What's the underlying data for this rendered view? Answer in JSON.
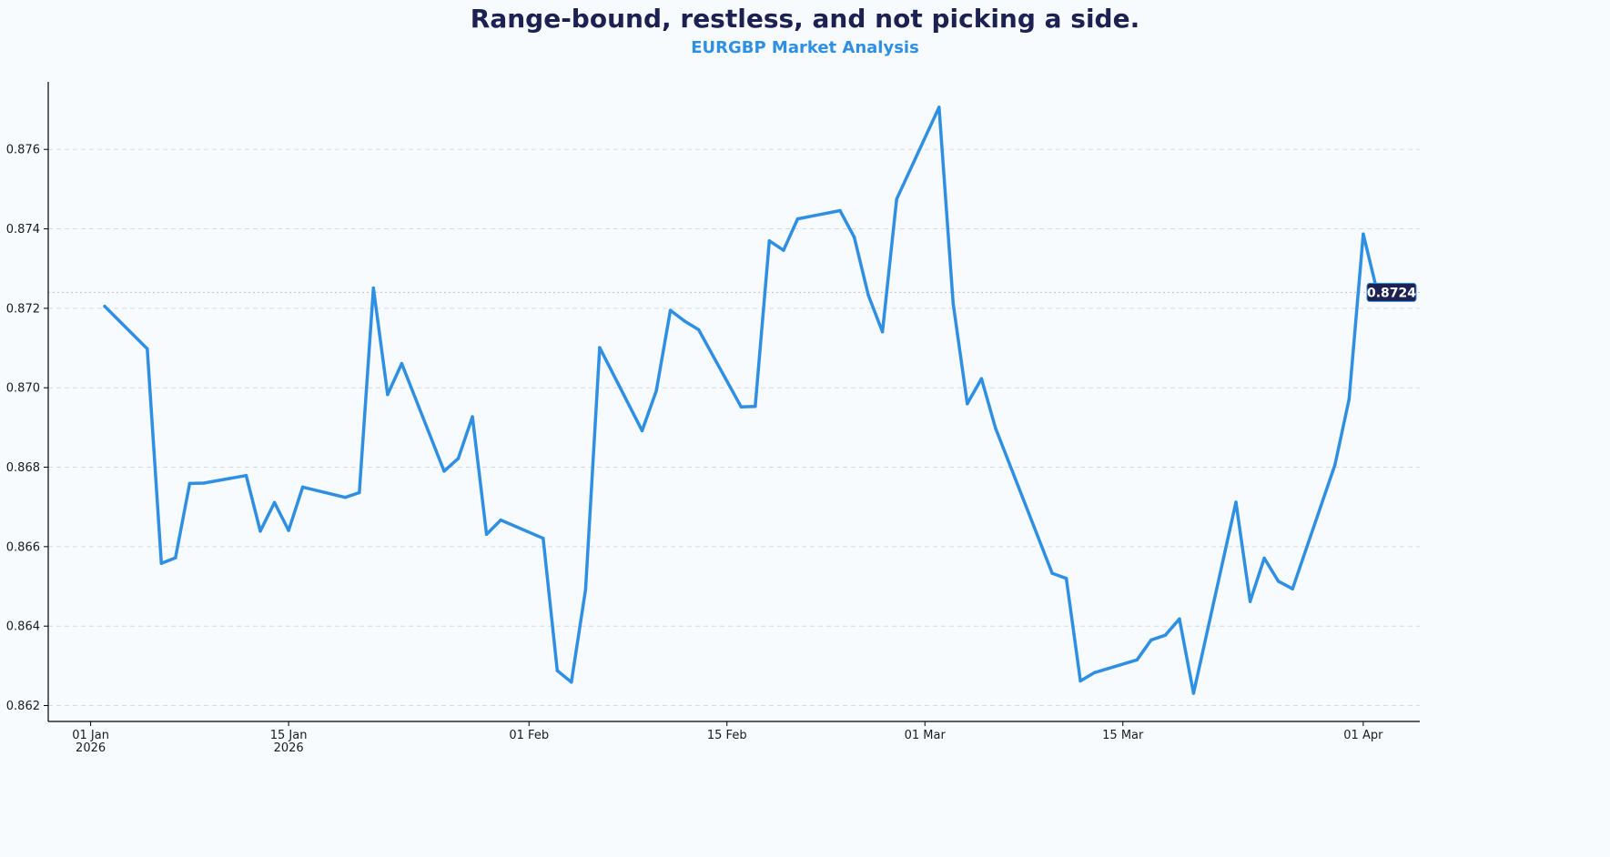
{
  "chart_data": {
    "type": "line",
    "title": "Range-bound, restless, and not picking a side.",
    "subtitle": "EURGBP Market Analysis",
    "xlabel": "",
    "ylabel": "",
    "ylim": [
      0.8616,
      0.8777
    ],
    "xlim": [
      "2025-12-29",
      "2026-04-05"
    ],
    "grid": "horizontal-dashed",
    "colors": {
      "line": "#2f8fe3",
      "title": "#1c2152",
      "subtitle": "#2f8fe3",
      "badge": "#1c2152",
      "grid": "#d5dbe3",
      "background": "#f8fbfe"
    },
    "y_ticks": [
      {
        "value": 0.862,
        "label": "0.862"
      },
      {
        "value": 0.864,
        "label": "0.864"
      },
      {
        "value": 0.866,
        "label": "0.866"
      },
      {
        "value": 0.868,
        "label": "0.868"
      },
      {
        "value": 0.87,
        "label": "0.870"
      },
      {
        "value": 0.872,
        "label": "0.872"
      },
      {
        "value": 0.874,
        "label": "0.874"
      },
      {
        "value": 0.876,
        "label": "0.876"
      }
    ],
    "x_ticks": [
      {
        "date": "2026-01-01",
        "label": [
          "01 Jan",
          "2026"
        ]
      },
      {
        "date": "2026-01-15",
        "label": [
          "15 Jan",
          "2026"
        ]
      },
      {
        "date": "2026-02-01",
        "label": [
          "01 Feb"
        ]
      },
      {
        "date": "2026-02-15",
        "label": [
          "15 Feb"
        ]
      },
      {
        "date": "2026-03-01",
        "label": [
          "01 Mar"
        ]
      },
      {
        "date": "2026-03-15",
        "label": [
          "15 Mar"
        ]
      },
      {
        "date": "2026-04-01",
        "label": [
          "01 Apr"
        ]
      }
    ],
    "last_value_label": "0.8724",
    "series": [
      {
        "points": [
          [
            "2026-01-02",
            0.87205
          ],
          [
            "2026-01-05",
            0.87098
          ],
          [
            "2026-01-06",
            0.86558
          ],
          [
            "2026-01-07",
            0.86572
          ],
          [
            "2026-01-08",
            0.86759
          ],
          [
            "2026-01-09",
            0.8676
          ],
          [
            "2026-01-12",
            0.86779
          ],
          [
            "2026-01-13",
            0.86639
          ],
          [
            "2026-01-14",
            0.86711
          ],
          [
            "2026-01-15",
            0.86641
          ],
          [
            "2026-01-16",
            0.8675
          ],
          [
            "2026-01-19",
            0.86724
          ],
          [
            "2026-01-20",
            0.86736
          ],
          [
            "2026-01-21",
            0.87251
          ],
          [
            "2026-01-22",
            0.86983
          ],
          [
            "2026-01-23",
            0.87061
          ],
          [
            "2026-01-26",
            0.8679
          ],
          [
            "2026-01-27",
            0.86822
          ],
          [
            "2026-01-28",
            0.86927
          ],
          [
            "2026-01-29",
            0.86631
          ],
          [
            "2026-01-30",
            0.86667
          ],
          [
            "2026-02-02",
            0.86621
          ],
          [
            "2026-02-03",
            0.86288
          ],
          [
            "2026-02-04",
            0.86259
          ],
          [
            "2026-02-05",
            0.86492
          ],
          [
            "2026-02-06",
            0.87101
          ],
          [
            "2026-02-09",
            0.86892
          ],
          [
            "2026-02-10",
            0.86992
          ],
          [
            "2026-02-11",
            0.87195
          ],
          [
            "2026-02-12",
            0.87168
          ],
          [
            "2026-02-13",
            0.87146
          ],
          [
            "2026-02-16",
            0.86952
          ],
          [
            "2026-02-17",
            0.86953
          ],
          [
            "2026-02-18",
            0.8737
          ],
          [
            "2026-02-19",
            0.87346
          ],
          [
            "2026-02-20",
            0.87425
          ],
          [
            "2026-02-23",
            0.87446
          ],
          [
            "2026-02-24",
            0.87379
          ],
          [
            "2026-02-25",
            0.87233
          ],
          [
            "2026-02-26",
            0.87141
          ],
          [
            "2026-02-27",
            0.87475
          ],
          [
            "2026-03-02",
            0.87706
          ],
          [
            "2026-03-03",
            0.87212
          ],
          [
            "2026-03-04",
            0.8696
          ],
          [
            "2026-03-05",
            0.87023
          ],
          [
            "2026-03-06",
            0.86898
          ],
          [
            "2026-03-10",
            0.86533
          ],
          [
            "2026-03-11",
            0.8652
          ],
          [
            "2026-03-12",
            0.86262
          ],
          [
            "2026-03-13",
            0.86283
          ],
          [
            "2026-03-16",
            0.86315
          ],
          [
            "2026-03-17",
            0.86365
          ],
          [
            "2026-03-18",
            0.86377
          ],
          [
            "2026-03-19",
            0.86418
          ],
          [
            "2026-03-20",
            0.86231
          ],
          [
            "2026-03-23",
            0.86712
          ],
          [
            "2026-03-24",
            0.86462
          ],
          [
            "2026-03-25",
            0.86571
          ],
          [
            "2026-03-26",
            0.86513
          ],
          [
            "2026-03-27",
            0.86494
          ],
          [
            "2026-03-30",
            0.86806
          ],
          [
            "2026-03-31",
            0.86971
          ],
          [
            "2026-04-01",
            0.87387
          ],
          [
            "2026-04-02",
            0.8724
          ]
        ]
      }
    ]
  }
}
